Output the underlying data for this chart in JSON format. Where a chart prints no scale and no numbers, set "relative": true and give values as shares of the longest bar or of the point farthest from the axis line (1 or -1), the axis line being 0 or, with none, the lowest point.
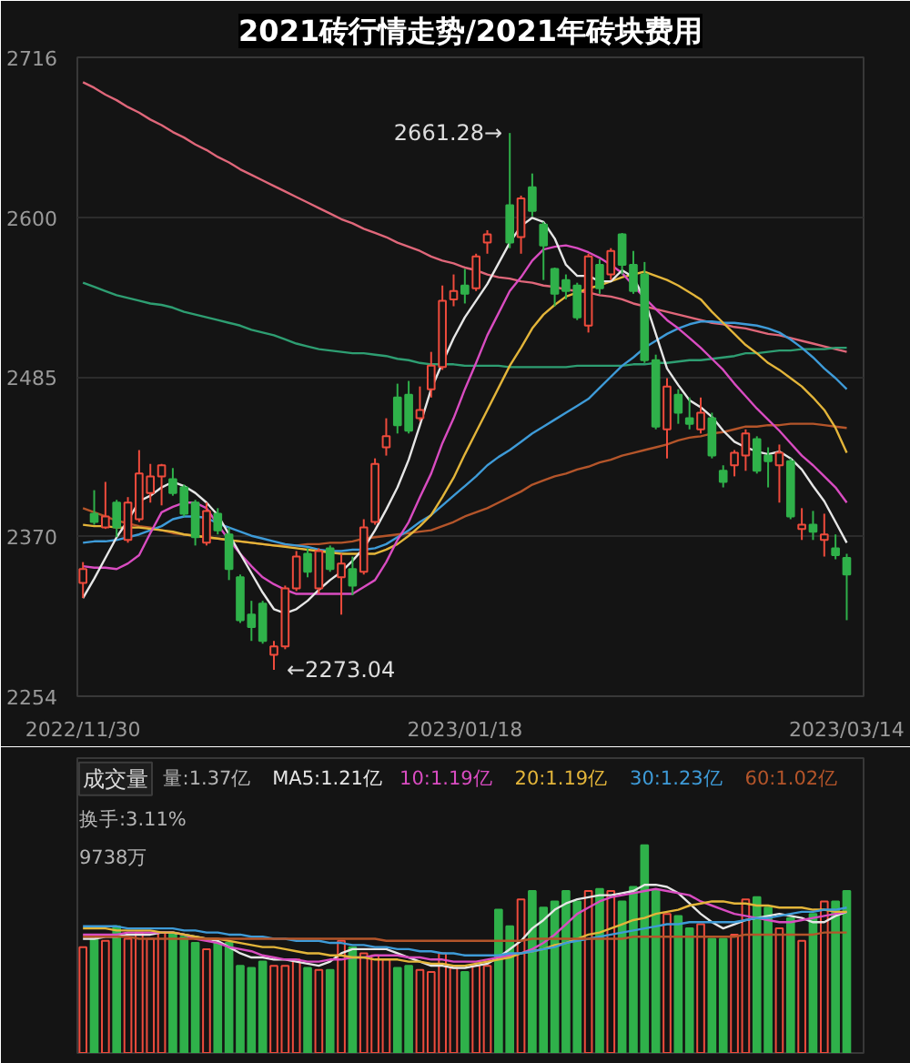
{
  "chart_data": [
    {
      "type": "candlestick",
      "title": "2021砖行情走势/2021年砖块费用",
      "categories": [
        "2022/11/30",
        null,
        null,
        null,
        null,
        null,
        null,
        null,
        null,
        null,
        null,
        null,
        null,
        null,
        null,
        null,
        null,
        null,
        null,
        null,
        null,
        null,
        null,
        null,
        null,
        null,
        null,
        null,
        null,
        null,
        null,
        null,
        null,
        null,
        "2023/01/18",
        null,
        null,
        null,
        null,
        null,
        null,
        null,
        null,
        null,
        null,
        null,
        null,
        null,
        null,
        null,
        null,
        null,
        null,
        null,
        null,
        null,
        null,
        null,
        null,
        null,
        null,
        null,
        null,
        null,
        null,
        null,
        null,
        null,
        "2023/03/14"
      ],
      "ylim": [
        2254,
        2716
      ],
      "yticks": [
        2716,
        2600,
        2485,
        2370,
        2254
      ],
      "grid": "y",
      "annotations": [
        "2661.28→",
        "←2273.04"
      ],
      "series": [
        {
          "type": "line",
          "color": "#e0677a",
          "values": [
            2698,
            2694,
            2689,
            2685,
            2680,
            2676,
            2671,
            2667,
            2662,
            2658,
            2653,
            2649,
            2644,
            2640,
            2635,
            2631,
            2627,
            2623,
            2619,
            2615,
            2611,
            2607,
            2603,
            2599,
            2596,
            2592,
            2589,
            2586,
            2582,
            2579,
            2576,
            2572,
            2569,
            2567,
            2564,
            2562,
            2559,
            2557,
            2556,
            2554,
            2553,
            2551,
            2550,
            2548,
            2547,
            2546,
            2544,
            2543,
            2541,
            2538,
            2536,
            2534,
            2532,
            2530,
            2528,
            2526,
            2524,
            2523,
            2521,
            2520,
            2518,
            2516,
            2515,
            2513,
            2511,
            2509,
            2507,
            2505,
            2503
          ]
        },
        {
          "type": "line",
          "color": "#2e9e72",
          "values": [
            2553,
            2550,
            2547,
            2544,
            2542,
            2540,
            2538,
            2537,
            2535,
            2532,
            2530,
            2528,
            2526,
            2524,
            2522,
            2519,
            2517,
            2515,
            2512,
            2509,
            2507,
            2505,
            2504,
            2503,
            2502,
            2502,
            2501,
            2500,
            2498,
            2497,
            2495,
            2494,
            2494,
            2494,
            2493,
            2493,
            2493,
            2493,
            2492,
            2492,
            2492,
            2492,
            2492,
            2492,
            2493,
            2493,
            2493,
            2493,
            2493,
            2494,
            2494,
            2495,
            2495,
            2496,
            2497,
            2497,
            2498,
            2499,
            2500,
            2502,
            2502,
            2503,
            2504,
            2504,
            2505,
            2505,
            2505,
            2506,
            2506
          ]
        },
        {
          "type": "line",
          "color": "#b4552a",
          "values": [
            2390,
            2387,
            2384,
            2381,
            2379,
            2377,
            2376,
            2374,
            2372,
            2371,
            2370,
            2369,
            2368,
            2367,
            2366,
            2365,
            2364,
            2363,
            2363,
            2363,
            2364,
            2364,
            2365,
            2365,
            2366,
            2368,
            2369,
            2370,
            2371,
            2372,
            2373,
            2374,
            2377,
            2380,
            2384,
            2387,
            2390,
            2394,
            2398,
            2402,
            2407,
            2410,
            2413,
            2415,
            2418,
            2420,
            2423,
            2425,
            2428,
            2430,
            2432,
            2434,
            2436,
            2439,
            2441,
            2442,
            2444,
            2445,
            2447,
            2449,
            2449,
            2450,
            2450,
            2451,
            2451,
            2451,
            2450,
            2449,
            2448
          ]
        },
        {
          "type": "line",
          "color": "#3e9bd8",
          "values": [
            2365,
            2366,
            2366,
            2367,
            2369,
            2371,
            2374,
            2377,
            2382,
            2384,
            2384,
            2383,
            2379,
            2376,
            2373,
            2370,
            2368,
            2366,
            2364,
            2363,
            2362,
            2360,
            2359,
            2359,
            2360,
            2360,
            2361,
            2364,
            2369,
            2374,
            2380,
            2385,
            2392,
            2399,
            2406,
            2413,
            2421,
            2427,
            2432,
            2438,
            2444,
            2449,
            2454,
            2459,
            2464,
            2469,
            2477,
            2485,
            2493,
            2499,
            2506,
            2511,
            2516,
            2520,
            2523,
            2525,
            2525,
            2524,
            2524,
            2523,
            2522,
            2520,
            2517,
            2512,
            2506,
            2499,
            2491,
            2484,
            2476
          ]
        },
        {
          "type": "line",
          "color": "#e3b53a",
          "values": [
            2378,
            2377,
            2377,
            2376,
            2376,
            2376,
            2375,
            2374,
            2373,
            2371,
            2370,
            2369,
            2368,
            2367,
            2366,
            2365,
            2364,
            2363,
            2362,
            2361,
            2360,
            2359,
            2358,
            2357,
            2357,
            2357,
            2357,
            2360,
            2364,
            2370,
            2377,
            2385,
            2398,
            2412,
            2429,
            2445,
            2461,
            2477,
            2493,
            2506,
            2520,
            2530,
            2537,
            2543,
            2546,
            2549,
            2551,
            2554,
            2557,
            2559,
            2561,
            2558,
            2555,
            2551,
            2546,
            2541,
            2532,
            2524,
            2516,
            2508,
            2502,
            2495,
            2490,
            2484,
            2478,
            2470,
            2461,
            2448,
            2430
          ]
        },
        {
          "type": "line",
          "color": "#d94cc1",
          "values": [
            2348,
            2347,
            2347,
            2346,
            2350,
            2356,
            2372,
            2387,
            2391,
            2394,
            2394,
            2390,
            2378,
            2367,
            2357,
            2348,
            2340,
            2335,
            2331,
            2328,
            2328,
            2328,
            2328,
            2328,
            2328,
            2333,
            2338,
            2351,
            2367,
            2380,
            2398,
            2415,
            2437,
            2455,
            2476,
            2495,
            2515,
            2531,
            2547,
            2557,
            2569,
            2577,
            2579,
            2580,
            2578,
            2575,
            2571,
            2566,
            2560,
            2551,
            2542,
            2534,
            2526,
            2520,
            2513,
            2506,
            2498,
            2490,
            2480,
            2471,
            2462,
            2454,
            2446,
            2437,
            2428,
            2421,
            2413,
            2405,
            2394
          ]
        },
        {
          "type": "line",
          "color": "#e6e6e6",
          "values": [
            2325,
            2339,
            2354,
            2369,
            2381,
            2395,
            2399,
            2405,
            2409,
            2406,
            2401,
            2394,
            2385,
            2371,
            2357,
            2343,
            2329,
            2317,
            2314,
            2317,
            2323,
            2331,
            2338,
            2344,
            2352,
            2361,
            2374,
            2389,
            2405,
            2425,
            2450,
            2476,
            2495,
            2513,
            2528,
            2540,
            2552,
            2567,
            2582,
            2594,
            2600,
            2597,
            2585,
            2566,
            2558,
            2558,
            2554,
            2554,
            2562,
            2557,
            2541,
            2516,
            2491,
            2479,
            2468,
            2463,
            2456,
            2446,
            2438,
            2434,
            2431,
            2429,
            2431,
            2426,
            2418,
            2406,
            2395,
            2380,
            2365
          ]
        },
        {
          "ohlc": [
            [
              2336,
              2351,
              2325,
              2346
            ],
            [
              2386,
              2403,
              2378,
              2380
            ],
            [
              2376,
              2409,
              2375,
              2384
            ],
            [
              2394,
              2396,
              2369,
              2376
            ],
            [
              2367,
              2398,
              2365,
              2394
            ],
            [
              2382,
              2432,
              2380,
              2415
            ],
            [
              2401,
              2422,
              2394,
              2413
            ],
            [
              2413,
              2422,
              2392,
              2421
            ],
            [
              2411,
              2419,
              2399,
              2401
            ],
            [
              2405,
              2407,
              2384,
              2386
            ],
            [
              2394,
              2396,
              2363,
              2369
            ],
            [
              2365,
              2394,
              2363,
              2388
            ],
            [
              2386,
              2390,
              2371,
              2374
            ],
            [
              2371,
              2376,
              2338,
              2346
            ],
            [
              2340,
              2342,
              2307,
              2309
            ],
            [
              2313,
              2323,
              2294,
              2304
            ],
            [
              2321,
              2323,
              2292,
              2294
            ],
            [
              2284,
              2294,
              2273.04,
              2290
            ],
            [
              2290,
              2334,
              2288,
              2332
            ],
            [
              2332,
              2359,
              2330,
              2355
            ],
            [
              2357,
              2361,
              2340,
              2344
            ],
            [
              2332,
              2361,
              2328,
              2359
            ],
            [
              2361,
              2363,
              2344,
              2346
            ],
            [
              2340,
              2357,
              2313,
              2350
            ],
            [
              2346,
              2355,
              2327,
              2334
            ],
            [
              2344,
              2382,
              2342,
              2376
            ],
            [
              2380,
              2426,
              2378,
              2422
            ],
            [
              2434,
              2455,
              2428,
              2442
            ],
            [
              2470,
              2480,
              2444,
              2450
            ],
            [
              2472,
              2482,
              2444,
              2446
            ],
            [
              2455,
              2478,
              2453,
              2461
            ],
            [
              2476,
              2503,
              2470,
              2493
            ],
            [
              2492,
              2551,
              2490,
              2540
            ],
            [
              2541,
              2559,
              2536,
              2547
            ],
            [
              2551,
              2563,
              2538,
              2545
            ],
            [
              2549,
              2574,
              2547,
              2572
            ],
            [
              2582,
              2591,
              2574,
              2588
            ],
            null,
            [
              2609,
              2661.28,
              2578,
              2582
            ],
            [
              2586,
              2616,
              2574,
              2614
            ],
            [
              2622,
              2632,
              2601,
              2605
            ],
            [
              2595,
              2597,
              2555,
              2580
            ],
            [
              2563,
              2564,
              2536,
              2545
            ],
            [
              2555,
              2559,
              2541,
              2547
            ],
            [
              2551,
              2553,
              2526,
              2528
            ],
            [
              2522,
              2574,
              2517,
              2572
            ],
            [
              2566,
              2570,
              2545,
              2549
            ],
            [
              2559,
              2578,
              2555,
              2576
            ],
            [
              2588,
              2589,
              2559,
              2566
            ],
            [
              2566,
              2576,
              2545,
              2547
            ],
            [
              2559,
              2568,
              2495,
              2497
            ],
            [
              2497,
              2501,
              2447,
              2449
            ],
            [
              2447,
              2484,
              2426,
              2478
            ],
            [
              2472,
              2476,
              2451,
              2459
            ],
            [
              2455,
              2470,
              2447,
              2451
            ],
            [
              2447,
              2470,
              2444,
              2459
            ],
            [
              2455,
              2459,
              2426,
              2428
            ],
            [
              2417,
              2421,
              2405,
              2409
            ],
            [
              2421,
              2432,
              2413,
              2430
            ],
            [
              2428,
              2447,
              2417,
              2444
            ],
            [
              2440,
              2442,
              2415,
              2417
            ],
            [
              2428,
              2434,
              2405,
              2424
            ],
            [
              2421,
              2436,
              2394,
              2430
            ],
            [
              2424,
              2426,
              2382,
              2384
            ],
            [
              2375,
              2390,
              2367,
              2378
            ],
            [
              2378,
              2388,
              2367,
              2373
            ],
            [
              2367,
              2386,
              2355,
              2371
            ],
            [
              2361,
              2371,
              2353,
              2356
            ],
            [
              2354,
              2357,
              2309,
              2342
            ]
          ],
          "colors": [
            "#ee4b3c",
            "#2fb14a",
            "#ee4b3c",
            "#2fb14a",
            "#ee4b3c",
            "#ee4b3c",
            "#ee4b3c",
            "#ee4b3c",
            "#2fb14a",
            "#2fb14a",
            "#2fb14a",
            "#ee4b3c",
            "#2fb14a",
            "#2fb14a",
            "#2fb14a",
            "#2fb14a",
            "#2fb14a",
            "#ee4b3c",
            "#ee4b3c",
            "#ee4b3c",
            "#2fb14a",
            "#ee4b3c",
            "#2fb14a",
            "#ee4b3c",
            "#2fb14a",
            "#ee4b3c",
            "#ee4b3c",
            "#ee4b3c",
            "#2fb14a",
            "#2fb14a",
            "#ee4b3c",
            "#ee4b3c",
            "#ee4b3c",
            "#ee4b3c",
            "#2fb14a",
            "#ee4b3c",
            "#ee4b3c",
            null,
            "#2fb14a",
            "#ee4b3c",
            "#2fb14a",
            "#2fb14a",
            "#2fb14a",
            "#2fb14a",
            "#2fb14a",
            "#ee4b3c",
            "#2fb14a",
            "#ee4b3c",
            "#2fb14a",
            "#2fb14a",
            "#2fb14a",
            "#2fb14a",
            "#ee4b3c",
            "#2fb14a",
            "#2fb14a",
            "#ee4b3c",
            "#2fb14a",
            "#2fb14a",
            "#ee4b3c",
            "#ee4b3c",
            "#2fb14a",
            "#2fb14a",
            "#ee4b3c",
            "#2fb14a",
            "#ee4b3c",
            "#2fb14a",
            "#ee4b3c",
            "#2fb14a",
            "#2fb14a"
          ]
        }
      ]
    },
    {
      "type": "bar",
      "title": "成交量",
      "relative": true,
      "tick_labels": false,
      "legend": "top",
      "categories": [
        "2022/11/30",
        null,
        null,
        null,
        null,
        null,
        null,
        null,
        null,
        null,
        null,
        null,
        null,
        null,
        null,
        null,
        null,
        null,
        null,
        null,
        null,
        null,
        null,
        null,
        null,
        null,
        null,
        null,
        null,
        null,
        null,
        null,
        null,
        null,
        "2023/01/18",
        null,
        null,
        null,
        null,
        null,
        null,
        null,
        null,
        null,
        null,
        null,
        null,
        null,
        null,
        null,
        null,
        null,
        null,
        null,
        null,
        null,
        null,
        null,
        null,
        null,
        null,
        null,
        null,
        null,
        null,
        null,
        null,
        null,
        "2023/03/14"
      ],
      "annotations": [
        "量:1.37亿",
        "换手:3.11%",
        "9738万"
      ],
      "series": [
        {
          "values": [
            0.51,
            0.57,
            0.54,
            0.61,
            0.55,
            0.58,
            0.55,
            0.58,
            0.58,
            0.56,
            0.53,
            0.5,
            0.53,
            0.53,
            0.42,
            0.41,
            0.44,
            0.42,
            0.42,
            0.45,
            0.41,
            0.4,
            0.4,
            0.54,
            0.51,
            0.48,
            0.47,
            0.45,
            0.41,
            0.42,
            0.4,
            0.39,
            0.48,
            0.41,
            0.39,
            0.42,
            0.42,
            0.69,
            0.61,
            0.74,
            0.78,
            0.7,
            0.73,
            0.78,
            0.73,
            0.78,
            0.79,
            0.78,
            0.73,
            0.8,
            1,
            0.78,
            0.67,
            0.66,
            0.6,
            0.62,
            0.55,
            0.55,
            0.57,
            0.74,
            0.75,
            0.7,
            0.6,
            0.65,
            0.54,
            0.67,
            0.73,
            0.73,
            0.78
          ],
          "colors": [
            "#ee4b3c",
            "#2fb14a",
            "#ee4b3c",
            "#2fb14a",
            "#ee4b3c",
            "#ee4b3c",
            "#ee4b3c",
            "#ee4b3c",
            "#2fb14a",
            "#2fb14a",
            "#2fb14a",
            "#ee4b3c",
            "#2fb14a",
            "#2fb14a",
            "#2fb14a",
            "#2fb14a",
            "#2fb14a",
            "#ee4b3c",
            "#ee4b3c",
            "#ee4b3c",
            "#2fb14a",
            "#ee4b3c",
            "#2fb14a",
            "#ee4b3c",
            "#2fb14a",
            "#ee4b3c",
            "#ee4b3c",
            "#ee4b3c",
            "#2fb14a",
            "#2fb14a",
            "#ee4b3c",
            "#ee4b3c",
            "#ee4b3c",
            "#ee4b3c",
            "#2fb14a",
            "#ee4b3c",
            "#ee4b3c",
            "#2fb14a",
            "#2fb14a",
            "#ee4b3c",
            "#2fb14a",
            "#2fb14a",
            "#2fb14a",
            "#2fb14a",
            "#2fb14a",
            "#ee4b3c",
            "#2fb14a",
            "#ee4b3c",
            "#2fb14a",
            "#2fb14a",
            "#2fb14a",
            "#2fb14a",
            "#ee4b3c",
            "#2fb14a",
            "#2fb14a",
            "#ee4b3c",
            "#2fb14a",
            "#2fb14a",
            "#ee4b3c",
            "#ee4b3c",
            "#2fb14a",
            "#2fb14a",
            "#ee4b3c",
            "#2fb14a",
            "#ee4b3c",
            "#2fb14a",
            "#ee4b3c",
            "#2fb14a",
            "#2fb14a"
          ]
        },
        {
          "type": "line",
          "name": "MA5:1.21亿",
          "color": "#e6e6e6",
          "values": [
            0.55,
            0.55,
            0.56,
            0.56,
            0.57,
            0.57,
            0.57,
            0.58,
            0.58,
            0.57,
            0.56,
            0.55,
            0.54,
            0.51,
            0.48,
            0.46,
            0.46,
            0.45,
            0.45,
            0.44,
            0.43,
            0.42,
            0.44,
            0.48,
            0.5,
            0.5,
            0.5,
            0.5,
            0.48,
            0.46,
            0.44,
            0.42,
            0.42,
            0.41,
            0.41,
            0.42,
            0.43,
            0.46,
            0.5,
            0.54,
            0.6,
            0.64,
            0.69,
            0.72,
            0.74,
            0.75,
            0.76,
            0.76,
            0.77,
            0.78,
            0.81,
            0.81,
            0.8,
            0.77,
            0.72,
            0.67,
            0.63,
            0.6,
            0.62,
            0.64,
            0.65,
            0.66,
            0.67,
            0.66,
            0.65,
            0.63,
            0.63,
            0.66,
            0.68
          ]
        },
        {
          "type": "line",
          "name": "10:1.19亿",
          "color": "#d94cc1",
          "values": [
            0.57,
            0.57,
            0.57,
            0.57,
            0.58,
            0.58,
            0.58,
            0.58,
            0.58,
            0.57,
            0.55,
            0.54,
            0.53,
            0.51,
            0.5,
            0.49,
            0.47,
            0.46,
            0.45,
            0.45,
            0.44,
            0.44,
            0.45,
            0.45,
            0.46,
            0.46,
            0.47,
            0.47,
            0.47,
            0.46,
            0.46,
            0.45,
            0.45,
            0.44,
            0.44,
            0.44,
            0.45,
            0.46,
            0.47,
            0.48,
            0.5,
            0.53,
            0.57,
            0.62,
            0.67,
            0.7,
            0.73,
            0.75,
            0.76,
            0.77,
            0.78,
            0.79,
            0.78,
            0.77,
            0.76,
            0.73,
            0.71,
            0.69,
            0.67,
            0.66,
            0.65,
            0.64,
            0.63,
            0.63,
            0.64,
            0.65,
            0.66,
            0.67,
            0.68
          ]
        },
        {
          "type": "line",
          "name": "20:1.19亿",
          "color": "#e3b53a",
          "values": [
            0.6,
            0.6,
            0.6,
            0.59,
            0.59,
            0.59,
            0.59,
            0.58,
            0.58,
            0.57,
            0.56,
            0.55,
            0.55,
            0.54,
            0.53,
            0.52,
            0.51,
            0.51,
            0.5,
            0.49,
            0.48,
            0.48,
            0.47,
            0.47,
            0.46,
            0.46,
            0.45,
            0.45,
            0.45,
            0.44,
            0.44,
            0.43,
            0.43,
            0.42,
            0.42,
            0.43,
            0.44,
            0.45,
            0.46,
            0.48,
            0.49,
            0.5,
            0.52,
            0.53,
            0.55,
            0.57,
            0.58,
            0.6,
            0.62,
            0.64,
            0.65,
            0.67,
            0.68,
            0.69,
            0.71,
            0.72,
            0.73,
            0.73,
            0.72,
            0.72,
            0.71,
            0.71,
            0.7,
            0.7,
            0.7,
            0.69,
            0.69,
            0.68,
            0.68
          ]
        },
        {
          "type": "line",
          "name": "30:1.23亿",
          "color": "#3e9bd8",
          "values": [
            0.61,
            0.61,
            0.61,
            0.61,
            0.6,
            0.6,
            0.6,
            0.6,
            0.6,
            0.59,
            0.59,
            0.58,
            0.58,
            0.57,
            0.57,
            0.56,
            0.56,
            0.55,
            0.55,
            0.54,
            0.54,
            0.54,
            0.53,
            0.53,
            0.52,
            0.52,
            0.51,
            0.51,
            0.5,
            0.5,
            0.49,
            0.49,
            0.48,
            0.48,
            0.47,
            0.47,
            0.47,
            0.47,
            0.48,
            0.48,
            0.49,
            0.5,
            0.51,
            0.53,
            0.54,
            0.55,
            0.56,
            0.57,
            0.58,
            0.59,
            0.6,
            0.61,
            0.62,
            0.62,
            0.63,
            0.63,
            0.63,
            0.63,
            0.63,
            0.64,
            0.65,
            0.65,
            0.66,
            0.67,
            0.68,
            0.68,
            0.69,
            0.69,
            0.7
          ]
        },
        {
          "type": "line",
          "name": "60:1.02亿",
          "color": "#b4552a",
          "values": [
            0.56,
            0.56,
            0.56,
            0.56,
            0.56,
            0.55,
            0.55,
            0.55,
            0.55,
            0.55,
            0.55,
            0.55,
            0.55,
            0.55,
            0.55,
            0.55,
            0.55,
            0.55,
            0.55,
            0.55,
            0.55,
            0.55,
            0.55,
            0.55,
            0.55,
            0.55,
            0.55,
            0.54,
            0.54,
            0.54,
            0.54,
            0.54,
            0.54,
            0.54,
            0.54,
            0.54,
            0.54,
            0.54,
            0.54,
            0.54,
            0.55,
            0.55,
            0.55,
            0.55,
            0.55,
            0.55,
            0.55,
            0.55,
            0.55,
            0.56,
            0.56,
            0.56,
            0.56,
            0.56,
            0.56,
            0.56,
            0.56,
            0.56,
            0.56,
            0.57,
            0.57,
            0.57,
            0.57,
            0.57,
            0.57,
            0.57,
            0.58,
            0.58,
            0.58
          ]
        }
      ]
    }
  ]
}
